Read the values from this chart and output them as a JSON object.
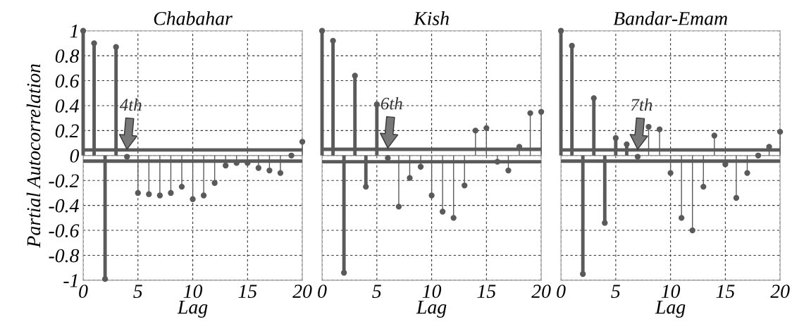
{
  "chart_data": [
    {
      "type": "lollipop",
      "title": "Chabahar",
      "xlabel": "Lag",
      "ylabel": "Partial Autocorrelation",
      "x": [
        0,
        1,
        2,
        3,
        4,
        5,
        6,
        7,
        8,
        9,
        10,
        11,
        12,
        13,
        14,
        15,
        16,
        17,
        18,
        19,
        20
      ],
      "series": [
        {
          "color": "#5a5a5a",
          "values": [
            1,
            0.9,
            -0.99,
            0.87,
            -0.01,
            -0.3,
            -0.31,
            -0.32,
            -0.3,
            -0.25,
            -0.35,
            -0.32,
            -0.22,
            -0.08,
            -0.06,
            -0.06,
            -0.1,
            -0.12,
            -0.14,
            0.0,
            0.11
          ]
        }
      ],
      "ref_lines": [
        {
          "axis": "y",
          "value": 0.045,
          "color": "#5a5a5a"
        },
        {
          "axis": "y",
          "value": -0.045,
          "color": "#5a5a5a"
        }
      ],
      "annotations": [
        {
          "text": "4th",
          "x": 4,
          "y": 0.05
        }
      ],
      "xlim": [
        0,
        20
      ],
      "ylim": [
        -1,
        1
      ],
      "xticks": [
        0,
        5,
        10,
        15,
        20
      ],
      "yticks": [
        1,
        0.8,
        0.6,
        0.4,
        0.2,
        0,
        -0.2,
        -0.4,
        -0.6,
        -0.8,
        -1
      ],
      "grid": true,
      "marker": "circle"
    },
    {
      "type": "lollipop",
      "title": "Kish",
      "xlabel": "Lag",
      "x": [
        0,
        1,
        2,
        3,
        4,
        5,
        6,
        7,
        8,
        9,
        10,
        11,
        12,
        13,
        14,
        15,
        16,
        17,
        18,
        19,
        20
      ],
      "series": [
        {
          "color": "#5a5a5a",
          "values": [
            1,
            0.92,
            -0.94,
            0.64,
            -0.25,
            0.41,
            -0.02,
            -0.41,
            -0.18,
            -0.09,
            -0.32,
            -0.45,
            -0.5,
            -0.24,
            0.2,
            0.22,
            -0.05,
            -0.12,
            0.07,
            0.34,
            0.35
          ]
        }
      ],
      "ref_lines": [
        {
          "axis": "y",
          "value": 0.05,
          "color": "#5a5a5a"
        },
        {
          "axis": "y",
          "value": -0.05,
          "color": "#5a5a5a"
        }
      ],
      "annotations": [
        {
          "text": "6th",
          "x": 6,
          "y": 0.06
        }
      ],
      "xlim": [
        0,
        20
      ],
      "ylim": [
        -1,
        1
      ],
      "xticks": [
        0,
        5,
        10,
        15,
        20
      ],
      "yticks": [
        1,
        0.8,
        0.6,
        0.4,
        0.2,
        0,
        -0.2,
        -0.4,
        -0.6,
        -0.8,
        -1
      ],
      "tick_labels": "x",
      "grid": true,
      "marker": "circle"
    },
    {
      "type": "lollipop",
      "title": "Bandar-Emam",
      "xlabel": "Lag",
      "x": [
        0,
        1,
        2,
        3,
        4,
        5,
        6,
        7,
        8,
        9,
        10,
        11,
        12,
        13,
        14,
        15,
        16,
        17,
        18,
        19,
        20
      ],
      "series": [
        {
          "color": "#5a5a5a",
          "values": [
            1,
            0.88,
            -0.95,
            0.46,
            -0.54,
            0.14,
            0.09,
            -0.01,
            0.23,
            0.21,
            -0.14,
            -0.5,
            -0.6,
            -0.25,
            0.16,
            -0.07,
            -0.34,
            -0.14,
            0.0,
            0.07,
            0.19
          ]
        }
      ],
      "ref_lines": [
        {
          "axis": "y",
          "value": 0.045,
          "color": "#5a5a5a"
        },
        {
          "axis": "y",
          "value": -0.045,
          "color": "#5a5a5a"
        }
      ],
      "annotations": [
        {
          "text": "7th",
          "x": 7,
          "y": 0.05
        }
      ],
      "xlim": [
        0,
        20
      ],
      "ylim": [
        -1,
        1
      ],
      "xticks": [
        0,
        5,
        10,
        15,
        20
      ],
      "yticks": [
        1,
        0.8,
        0.6,
        0.4,
        0.2,
        0,
        -0.2,
        -0.4,
        -0.6,
        -0.8,
        -1
      ],
      "tick_labels": "x",
      "grid": true,
      "marker": "circle"
    }
  ]
}
